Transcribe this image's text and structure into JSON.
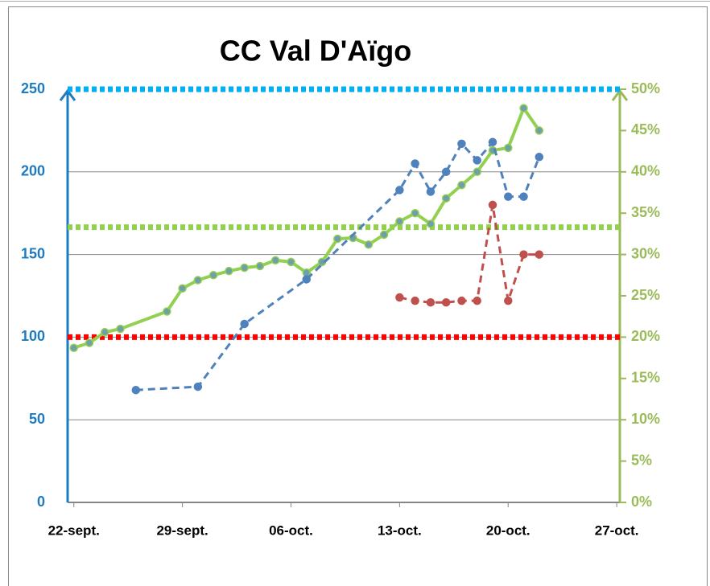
{
  "chart_data": {
    "type": "line",
    "title": "CC Val D'Aïgo",
    "xlim": [
      -0.4,
      35.2
    ],
    "xticks": [
      {
        "value": 0,
        "label": "22-sept."
      },
      {
        "value": 7,
        "label": "29-sept."
      },
      {
        "value": 14,
        "label": "06-oct."
      },
      {
        "value": 21,
        "label": "13-oct."
      },
      {
        "value": 28,
        "label": "20-oct."
      },
      {
        "value": 35,
        "label": "27-oct."
      }
    ],
    "ylim": [
      0,
      250
    ],
    "yticks": [
      0,
      50,
      100,
      150,
      200,
      250
    ],
    "y2lim": [
      0,
      50
    ],
    "y2ticks": [
      {
        "value": 0,
        "label": "0%"
      },
      {
        "value": 5,
        "label": "5%"
      },
      {
        "value": 10,
        "label": "10%"
      },
      {
        "value": 15,
        "label": "15%"
      },
      {
        "value": 20,
        "label": "20%"
      },
      {
        "value": 25,
        "label": "25%"
      },
      {
        "value": 30,
        "label": "30%"
      },
      {
        "value": 35,
        "label": "35%"
      },
      {
        "value": 40,
        "label": "40%"
      },
      {
        "value": 45,
        "label": "45%"
      },
      {
        "value": 50,
        "label": "50%"
      }
    ],
    "grid": true,
    "reference_lines": [
      {
        "value": 250,
        "color": "#00b0f0"
      },
      {
        "value": 33.3,
        "axis": "y2",
        "color": "#92d050"
      },
      {
        "value": 100,
        "color": "#ff0000"
      }
    ],
    "series": [
      {
        "color": "#92d050",
        "axis": "y2",
        "dash": false,
        "x": [
          0,
          1,
          2,
          3,
          6,
          7,
          8,
          9,
          10,
          11,
          12,
          13,
          14,
          15,
          16,
          17,
          18,
          19,
          20,
          21,
          22,
          23,
          24,
          25,
          26,
          27,
          28,
          29,
          30
        ],
        "values": [
          18.7,
          19.3,
          20.6,
          21.0,
          23.1,
          25.9,
          26.9,
          27.5,
          28.0,
          28.4,
          28.6,
          29.3,
          29.1,
          27.8,
          29.1,
          31.9,
          32.0,
          31.2,
          32.4,
          34.0,
          35.0,
          33.7,
          36.8,
          38.4,
          40.0,
          42.6,
          42.9,
          47.7,
          45.0
        ]
      },
      {
        "color": "#4f81bd",
        "dash": true,
        "x": [
          4,
          8,
          11,
          15,
          21,
          22,
          23,
          24,
          25,
          26,
          27,
          28,
          29,
          30
        ],
        "values": [
          68,
          70,
          108,
          135,
          189,
          205,
          188,
          200,
          217,
          207,
          218,
          185,
          185,
          209
        ]
      },
      {
        "color": "#c0504d",
        "dash": true,
        "x": [
          21,
          22,
          23,
          24,
          25,
          26,
          27,
          28,
          29,
          30
        ],
        "values": [
          124,
          122,
          121,
          121,
          122,
          122,
          180,
          122,
          150,
          150
        ]
      }
    ]
  }
}
